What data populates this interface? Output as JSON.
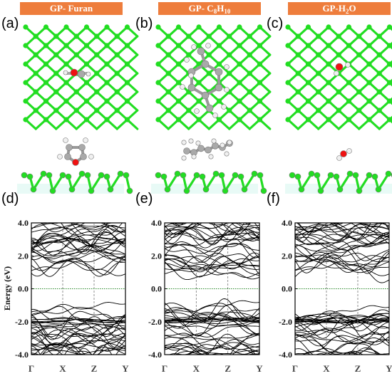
{
  "panels_top": [
    {
      "label": "(a)",
      "title_main": "GP- Furan",
      "title_sub": "",
      "title_tail": "",
      "adsorbate": "furan"
    },
    {
      "label": "(b)",
      "title_main": "GP- C",
      "title_sub": "8",
      "title_mid": "H",
      "title_sub2": "10",
      "title_tail": "",
      "adsorbate": "c8h10"
    },
    {
      "label": "(c)",
      "title_main": "GP-H",
      "title_sub": "2",
      "title_tail": "O",
      "adsorbate": "h2o"
    }
  ],
  "panels_bottom": [
    {
      "label": "(d)"
    },
    {
      "label": "(e)"
    },
    {
      "label": "(f)"
    }
  ],
  "colors": {
    "badge": "#ee7d3c",
    "phosphorus": "#22dd22",
    "carbon": "#a9a9a9",
    "oxygen": "#ee1111",
    "hydrogen": "#f0f0f0",
    "fermi": "#2b8a2b"
  },
  "chart_data": {
    "type": "line",
    "description_units": "eV",
    "ylabel": "Energy (eV)",
    "ylim": [
      -4.0,
      4.0
    ],
    "yticks": [
      "4.0",
      "2.0",
      "0.0",
      "-2.0",
      "-4.0"
    ],
    "ytick_values": [
      4.0,
      2.0,
      0.0,
      -2.0,
      -4.0
    ],
    "kpoints": [
      "Γ",
      "X",
      "Z",
      "Y"
    ],
    "fermi_level": 0.0,
    "grid": "vertical dashed at k-points, dotted Fermi line",
    "panels": [
      "(d)",
      "(e)",
      "(f)"
    ]
  }
}
